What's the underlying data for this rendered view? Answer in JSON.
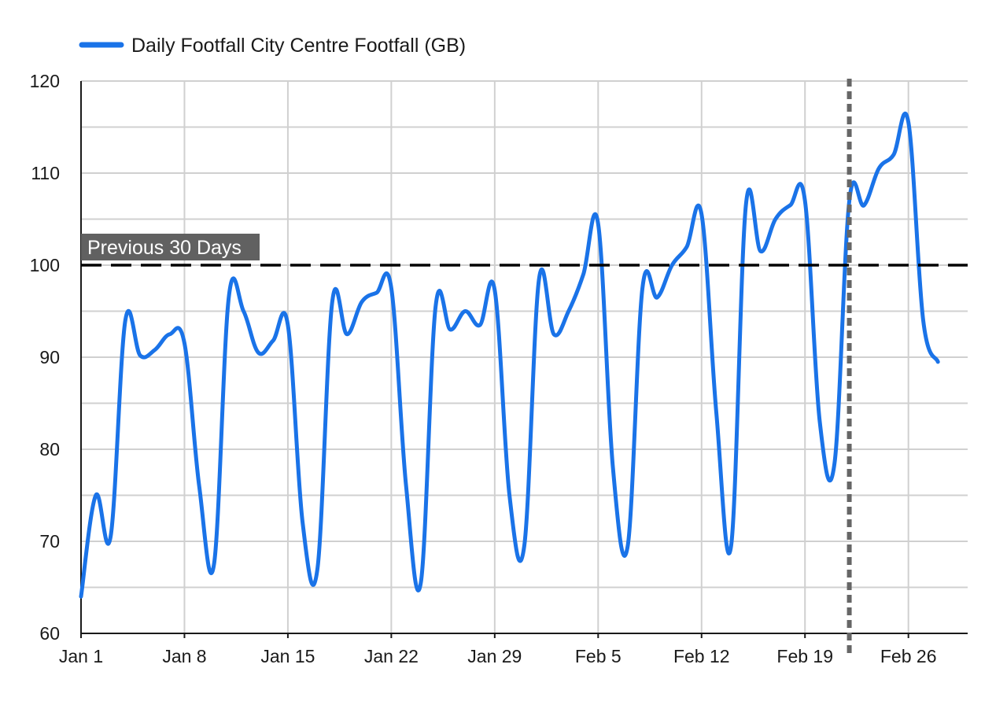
{
  "chart_data": {
    "type": "line",
    "x_start": "2024-01-01",
    "xlabel": "",
    "ylabel": "",
    "ylim": [
      60,
      120
    ],
    "yticks": [
      60,
      70,
      80,
      90,
      100,
      110,
      120
    ],
    "x_tick_labels": [
      "Jan 1",
      "Jan 8",
      "Jan 15",
      "Jan 22",
      "Jan 29",
      "Feb 5",
      "Feb 12",
      "Feb 19",
      "Feb 26"
    ],
    "grid": true,
    "legend_position": "top-left",
    "series": [
      {
        "name": "Daily Footfall City Centre Footfall (GB)",
        "color": "#1a73e8",
        "x": [
          "Jan 1",
          "Jan 2",
          "Jan 3",
          "Jan 4",
          "Jan 5",
          "Jan 6",
          "Jan 7",
          "Jan 8",
          "Jan 9",
          "Jan 10",
          "Jan 11",
          "Jan 12",
          "Jan 13",
          "Jan 14",
          "Jan 15",
          "Jan 16",
          "Jan 17",
          "Jan 18",
          "Jan 19",
          "Jan 20",
          "Jan 21",
          "Jan 22",
          "Jan 23",
          "Jan 24",
          "Jan 25",
          "Jan 26",
          "Jan 27",
          "Jan 28",
          "Jan 29",
          "Jan 30",
          "Jan 31",
          "Feb 1",
          "Feb 2",
          "Feb 3",
          "Feb 4",
          "Feb 5",
          "Feb 6",
          "Feb 7",
          "Feb 8",
          "Feb 9",
          "Feb 10",
          "Feb 11",
          "Feb 12",
          "Feb 13",
          "Feb 14",
          "Feb 15",
          "Feb 16",
          "Feb 17",
          "Feb 18",
          "Feb 19",
          "Feb 20",
          "Feb 21",
          "Feb 22",
          "Feb 23",
          "Feb 24",
          "Feb 25",
          "Feb 26",
          "Feb 27",
          "Feb 28"
        ],
        "values": [
          64,
          75,
          70.5,
          94,
          90.2,
          90.8,
          92.5,
          91.5,
          76,
          67.5,
          96.5,
          95,
          90.5,
          91.8,
          93.5,
          72,
          67,
          96,
          92.5,
          96,
          97,
          97.5,
          76,
          65.5,
          95.5,
          93,
          95,
          93.5,
          97.3,
          75,
          69.5,
          98.5,
          92.5,
          95,
          99,
          104.5,
          78,
          69.5,
          97.5,
          96.5,
          100,
          102,
          105.5,
          84,
          69.5,
          106.5,
          101.5,
          105,
          106.5,
          107,
          83,
          78.5,
          107,
          106.5,
          110.5,
          112,
          115.5,
          94,
          89.5
        ]
      }
    ],
    "reference_line": {
      "value": 100,
      "label": "Previous 30 Days",
      "color": "#000000"
    },
    "marker_line": {
      "x": "Feb 22",
      "color": "#666666"
    }
  }
}
